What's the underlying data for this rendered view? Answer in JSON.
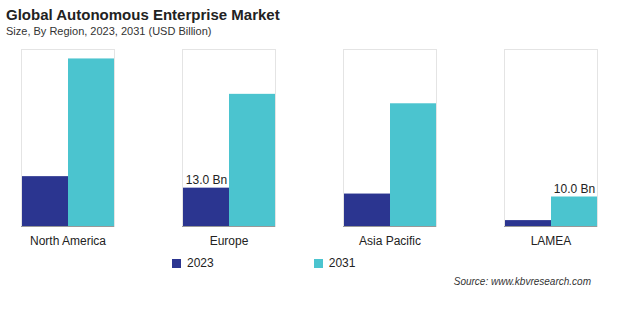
{
  "chart_data": {
    "type": "bar",
    "title": "Global Autonomous Enterprise Market",
    "subtitle": "Size, By Region, 2023, 2031 (USD Billion)",
    "source": "Source: www.kbvresearch.com",
    "categories": [
      "North America",
      "Europe",
      "Asia Pacific",
      "LAMEA"
    ],
    "series": [
      {
        "name": "2023",
        "color": "#2b3590",
        "values": [
          16.9,
          13.0,
          11.0,
          2.0
        ],
        "value_labels": [
          null,
          "13.0 Bn",
          null,
          null
        ]
      },
      {
        "name": "2031",
        "color": "#4bc4cf",
        "values": [
          56.8,
          44.8,
          41.6,
          10.0
        ],
        "value_labels": [
          null,
          null,
          null,
          "10.0 Bn"
        ]
      }
    ],
    "ylim": [
      0,
      60
    ],
    "legend": "bottom",
    "tick_labels": "x",
    "grid": false
  }
}
